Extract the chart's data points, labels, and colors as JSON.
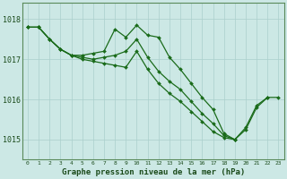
{
  "xlabel": "Graphe pression niveau de la mer (hPa)",
  "bg_color": "#cce8e5",
  "grid_color": "#aacfcc",
  "line_color": "#1a6b1a",
  "marker": "D",
  "markersize": 2.0,
  "linewidth": 0.9,
  "ylim": [
    1014.5,
    1018.4
  ],
  "yticks": [
    1015,
    1016,
    1017,
    1018
  ],
  "xlim": [
    -0.5,
    23.5
  ],
  "xticks": [
    0,
    1,
    2,
    3,
    4,
    5,
    6,
    7,
    8,
    9,
    10,
    11,
    12,
    13,
    14,
    15,
    16,
    17,
    18,
    19,
    20,
    21,
    22,
    23
  ],
  "series": [
    {
      "x": [
        0,
        1,
        2,
        3,
        4,
        5,
        6,
        7,
        8,
        9,
        10,
        11,
        12,
        13,
        14,
        15,
        16,
        17,
        18,
        19,
        20,
        21,
        22,
        23
      ],
      "y": [
        1017.8,
        1017.8,
        1017.5,
        1017.25,
        1017.1,
        1017.1,
        1017.15,
        1017.2,
        1017.75,
        1017.55,
        1017.85,
        1017.6,
        1017.55,
        1017.05,
        1016.75,
        1016.4,
        1016.05,
        1015.75,
        1015.15,
        1015.0,
        1015.3,
        1015.85,
        1016.05,
        1016.05
      ]
    },
    {
      "x": [
        0,
        1,
        2,
        3,
        4,
        5,
        6,
        7,
        8,
        9,
        10,
        11,
        12,
        13,
        14,
        15,
        16,
        17,
        18,
        19,
        20,
        21,
        22
      ],
      "y": [
        1017.8,
        1017.8,
        1017.5,
        1017.25,
        1017.1,
        1017.05,
        1017.0,
        1017.05,
        1017.1,
        1017.2,
        1017.5,
        1017.05,
        1016.7,
        1016.45,
        1016.25,
        1015.95,
        1015.65,
        1015.4,
        1015.1,
        1015.0,
        1015.25,
        1015.8,
        1016.05
      ]
    },
    {
      "x": [
        0,
        1,
        2,
        3,
        4,
        5,
        6,
        7,
        8,
        9,
        10,
        11,
        12,
        13,
        14,
        15,
        16,
        17,
        18,
        19
      ],
      "y": [
        1017.8,
        1017.8,
        1017.5,
        1017.25,
        1017.1,
        1017.0,
        1016.95,
        1016.9,
        1016.85,
        1016.8,
        1017.2,
        1016.75,
        1016.4,
        1016.15,
        1015.95,
        1015.7,
        1015.45,
        1015.2,
        1015.05,
        1015.0
      ]
    }
  ]
}
